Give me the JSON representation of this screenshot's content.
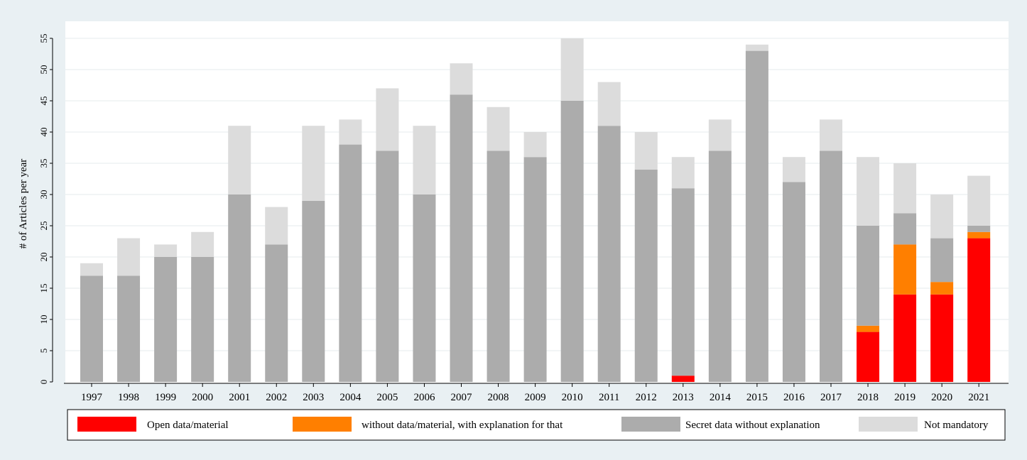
{
  "chart_data": {
    "type": "bar",
    "stacked": true,
    "ylabel": "# of Articles per year",
    "xlabel": "",
    "ylim": [
      0,
      55
    ],
    "yticks": [
      0,
      5,
      10,
      15,
      20,
      25,
      30,
      35,
      40,
      45,
      50,
      55
    ],
    "grid": true,
    "legend_position": "bottom",
    "categories": [
      "1997",
      "1998",
      "1999",
      "2000",
      "2001",
      "2002",
      "2003",
      "2004",
      "2005",
      "2006",
      "2007",
      "2008",
      "2009",
      "2010",
      "2011",
      "2012",
      "2013",
      "2014",
      "2015",
      "2016",
      "2017",
      "2018",
      "2019",
      "2020",
      "2021"
    ],
    "series": [
      {
        "name": "Open data/material",
        "color": "#ff0000",
        "values": [
          0,
          0,
          0,
          0,
          0,
          0,
          0,
          0,
          0,
          0,
          0,
          0,
          0,
          0,
          0,
          0,
          1,
          0,
          0,
          0,
          0,
          8,
          14,
          14,
          23
        ]
      },
      {
        "name": "without data/material, with explanation for that",
        "color": "#ff7f00",
        "values": [
          0,
          0,
          0,
          0,
          0,
          0,
          0,
          0,
          0,
          0,
          0,
          0,
          0,
          0,
          0,
          0,
          0,
          0,
          0,
          0,
          0,
          1,
          8,
          2,
          1
        ]
      },
      {
        "name": "Secret data without explanation",
        "color": "#acacac",
        "values": [
          17,
          17,
          20,
          20,
          30,
          22,
          29,
          38,
          37,
          30,
          46,
          37,
          36,
          45,
          41,
          34,
          30,
          37,
          53,
          32,
          37,
          16,
          5,
          7,
          1
        ]
      },
      {
        "name": "Not mandatory",
        "color": "#dcdcdc",
        "values": [
          2,
          6,
          2,
          4,
          11,
          6,
          12,
          4,
          10,
          11,
          5,
          7,
          4,
          10,
          7,
          6,
          5,
          5,
          1,
          4,
          5,
          11,
          8,
          7,
          8
        ]
      }
    ]
  }
}
